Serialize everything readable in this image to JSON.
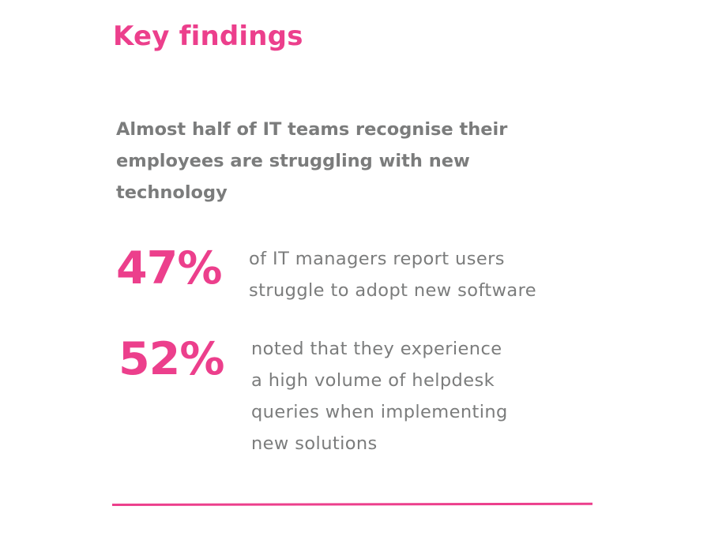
{
  "page": {
    "title": "Key findings",
    "subheading_lines": [
      "Almost half of IT teams recognise their",
      "employees are struggling with new",
      "technology"
    ]
  },
  "stats": [
    {
      "value": "47%",
      "lines": [
        "of IT managers report users",
        "struggle to adopt new software"
      ]
    },
    {
      "value": "52%",
      "lines": [
        "noted that they experience",
        "a high volume of helpdesk",
        "queries when implementing",
        "new solutions"
      ]
    }
  ],
  "colors": {
    "accent": "#ec3f8c",
    "body_text": "#7b7c7c",
    "background": "#ffffff"
  }
}
